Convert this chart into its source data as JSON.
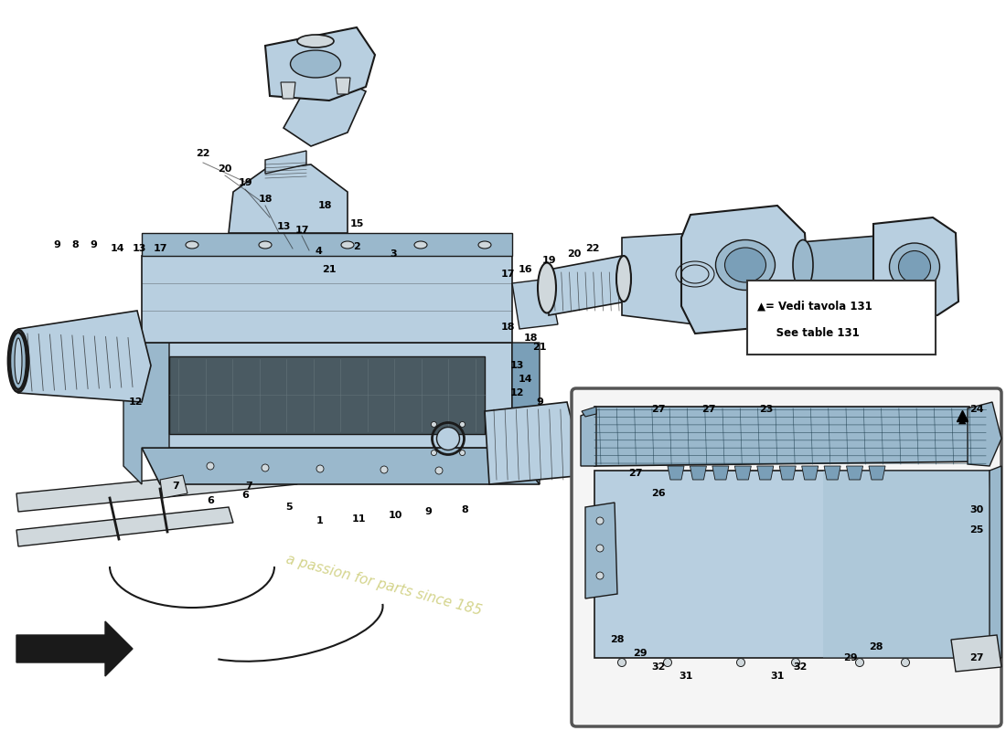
{
  "background_color": "#ffffff",
  "part_color_blue_light": "#b8cfe0",
  "part_color_blue_mid": "#9ab8cc",
  "part_color_blue_dark": "#7a9fb8",
  "part_color_grey": "#d0d8dc",
  "part_color_dark_filter": "#4a5a62",
  "line_color": "#1a1a1a",
  "label_color": "#000000",
  "legend_text1": "▲= Vedi tavola 131",
  "legend_text2": "     See table 131",
  "watermark_text": "a passion for parts since 185",
  "arrow_color": "#111111",
  "inset_bg": "#f5f5f5",
  "inset_border": "#555555"
}
